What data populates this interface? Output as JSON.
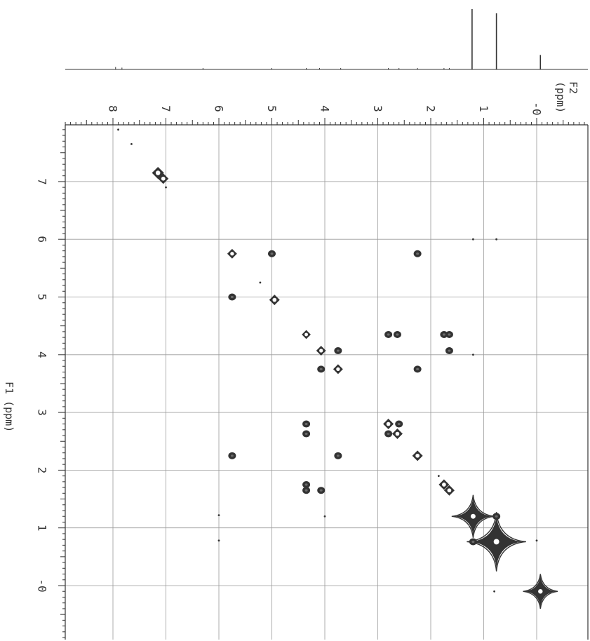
{
  "chart_data": {
    "type": "scatter",
    "subtype": "2D NMR COSY contour plot",
    "title": "",
    "x_axis": {
      "label": "F2 (ppm)",
      "label_lines": [
        "F2",
        "(ppm)"
      ],
      "range": [
        -1.0,
        8.9
      ],
      "reversed": true,
      "ticks": [
        8,
        7,
        6,
        5,
        4,
        3,
        2,
        1,
        0
      ],
      "tick_labels": [
        "8",
        "7",
        "6",
        "5",
        "4",
        "3",
        "2",
        "1",
        "-0"
      ]
    },
    "y_axis": {
      "label": "F1 (ppm)",
      "range": [
        -0.9,
        7.9
      ],
      "ticks": [
        7,
        6,
        5,
        4,
        3,
        2,
        1,
        0
      ],
      "tick_labels": [
        "7",
        "6",
        "5",
        "4",
        "3",
        "2",
        "1",
        "-0"
      ]
    },
    "grid": true,
    "projection_1d": {
      "peaks": [
        {
          "x": 7.95,
          "h": 0.04
        },
        {
          "x": 7.83,
          "h": 0.03
        },
        {
          "x": 6.3,
          "h": 0.01
        },
        {
          "x": 5.0,
          "h": 0.01
        },
        {
          "x": 4.35,
          "h": 0.01
        },
        {
          "x": 4.1,
          "h": 0.01
        },
        {
          "x": 3.7,
          "h": 0.01
        },
        {
          "x": 2.8,
          "h": 0.01
        },
        {
          "x": 2.6,
          "h": 0.01
        },
        {
          "x": 2.25,
          "h": 0.01
        },
        {
          "x": 1.75,
          "h": 0.015
        },
        {
          "x": 1.65,
          "h": 0.015
        },
        {
          "x": 1.22,
          "h": 1.0
        },
        {
          "x": 0.76,
          "h": 0.93
        },
        {
          "x": -0.07,
          "h": 0.24
        }
      ]
    },
    "diagonal_peaks": [
      {
        "x": 7.15,
        "y": 7.15,
        "size": 1.2
      },
      {
        "x": 7.05,
        "y": 7.05,
        "size": 1.0
      },
      {
        "x": 5.75,
        "y": 5.75,
        "size": 0.9
      },
      {
        "x": 4.95,
        "y": 4.95,
        "size": 1.0
      },
      {
        "x": 4.35,
        "y": 4.35,
        "size": 0.8
      },
      {
        "x": 4.07,
        "y": 4.07,
        "size": 0.9
      },
      {
        "x": 3.75,
        "y": 3.75,
        "size": 0.9
      },
      {
        "x": 2.8,
        "y": 2.8,
        "size": 1.0
      },
      {
        "x": 2.63,
        "y": 2.63,
        "size": 1.0
      },
      {
        "x": 2.25,
        "y": 2.25,
        "size": 1.0
      },
      {
        "x": 1.75,
        "y": 1.75,
        "size": 1.0
      },
      {
        "x": 1.65,
        "y": 1.65,
        "size": 1.0
      },
      {
        "x": 1.2,
        "y": 1.2,
        "size": 2.1
      },
      {
        "x": 0.76,
        "y": 0.76,
        "size": 2.9
      },
      {
        "x": -0.07,
        "y": -0.1,
        "size": 1.7
      }
    ],
    "cross_peaks": [
      {
        "x": 5.75,
        "y": 5.0
      },
      {
        "x": 5.75,
        "y": 2.25
      },
      {
        "x": 5.0,
        "y": 5.75
      },
      {
        "x": 2.25,
        "y": 5.75
      },
      {
        "x": 4.35,
        "y": 2.8
      },
      {
        "x": 4.35,
        "y": 2.63
      },
      {
        "x": 4.35,
        "y": 1.75
      },
      {
        "x": 4.35,
        "y": 1.65
      },
      {
        "x": 2.8,
        "y": 4.35
      },
      {
        "x": 2.63,
        "y": 4.35
      },
      {
        "x": 1.75,
        "y": 4.35
      },
      {
        "x": 1.65,
        "y": 4.35
      },
      {
        "x": 3.75,
        "y": 4.07
      },
      {
        "x": 4.07,
        "y": 3.75
      },
      {
        "x": 3.75,
        "y": 2.25
      },
      {
        "x": 2.25,
        "y": 3.75
      },
      {
        "x": 4.07,
        "y": 1.65
      },
      {
        "x": 1.65,
        "y": 4.07
      },
      {
        "x": 2.6,
        "y": 2.8
      },
      {
        "x": 2.8,
        "y": 2.63
      },
      {
        "x": 1.2,
        "y": 0.76
      },
      {
        "x": 0.76,
        "y": 1.2
      }
    ],
    "artifacts": [
      {
        "x": 7.9,
        "y": 7.9
      },
      {
        "x": 7.65,
        "y": 7.65
      },
      {
        "x": 5.22,
        "y": 5.25
      },
      {
        "x": 1.2,
        "y": 6.0
      },
      {
        "x": 0.76,
        "y": 6.0
      },
      {
        "x": 6.0,
        "y": 1.22
      },
      {
        "x": 6.0,
        "y": 0.78
      },
      {
        "x": 4.0,
        "y": 1.2
      },
      {
        "x": 1.2,
        "y": 4.0
      },
      {
        "x": 1.85,
        "y": 1.9
      },
      {
        "x": 0.0,
        "y": 0.78
      },
      {
        "x": 0.8,
        "y": -0.1
      },
      {
        "x": 7.0,
        "y": 6.9
      }
    ],
    "colors": {
      "ink": "#333333",
      "grid": "#9a9a9a",
      "background": "#ffffff"
    }
  }
}
